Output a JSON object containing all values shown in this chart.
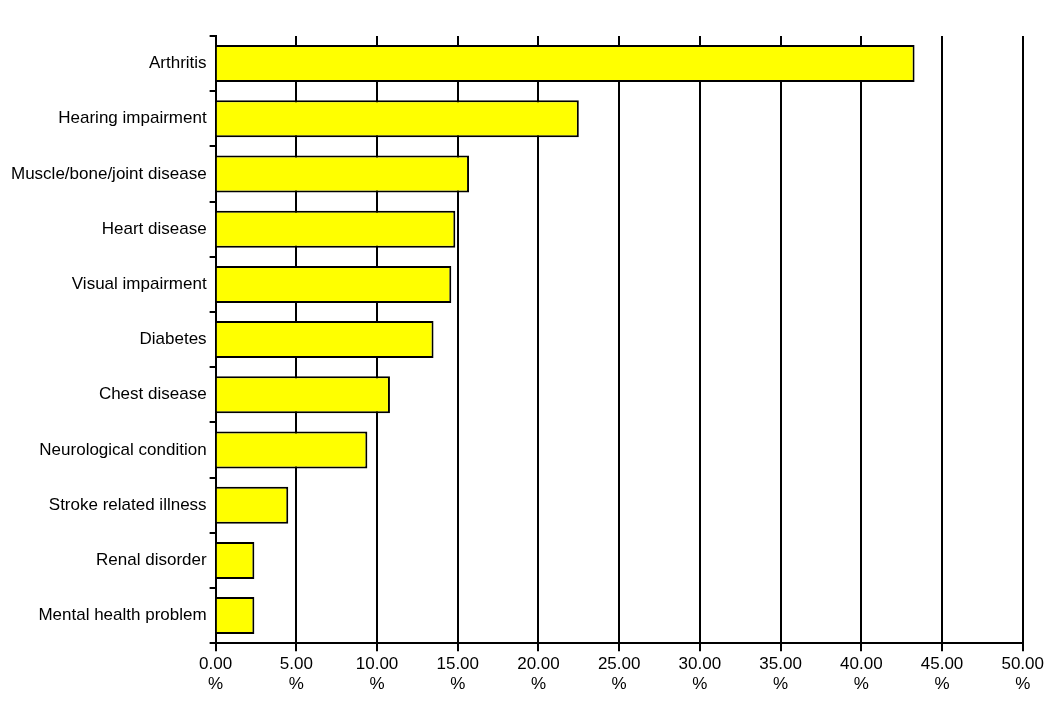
{
  "chart_data": {
    "type": "bar",
    "orientation": "horizontal",
    "categories": [
      "Arthritis",
      "Hearing impairment",
      "Muscle/bone/joint disease",
      "Heart disease",
      "Visual impairment",
      "Diabetes",
      "Chest disease",
      "Neurological condition",
      "Stroke related illness",
      "Renal disorder",
      "Mental health problem"
    ],
    "values": [
      43.3,
      22.5,
      15.7,
      14.85,
      14.6,
      13.5,
      10.8,
      9.4,
      4.5,
      2.4,
      2.4
    ],
    "color": "#ffff00",
    "xlim": [
      0,
      50
    ],
    "xticks": [
      {
        "value": 0,
        "label": "0.00 %"
      },
      {
        "value": 5,
        "label": "5.00 %"
      },
      {
        "value": 10,
        "label": "10.00 %"
      },
      {
        "value": 15,
        "label": "15.00 %"
      },
      {
        "value": 20,
        "label": "20.00 %"
      },
      {
        "value": 25,
        "label": "25.00 %"
      },
      {
        "value": 30,
        "label": "30.00 %"
      },
      {
        "value": 35,
        "label": "35.00 %"
      },
      {
        "value": 40,
        "label": "40.00 %"
      },
      {
        "value": 45,
        "label": "45.00 %"
      },
      {
        "value": 50,
        "label": "50.00 %"
      }
    ],
    "grid": "x",
    "legend": false
  }
}
